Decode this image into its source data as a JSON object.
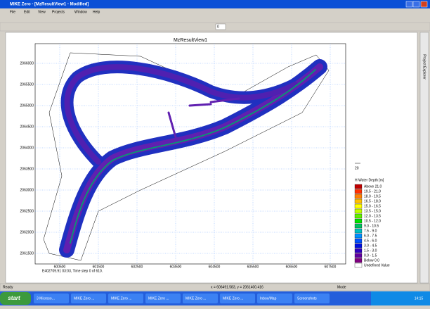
{
  "window": {
    "title": "MIKE Zero - [MzResultView1 - Modified]",
    "menu": [
      "File",
      "Edit",
      "View",
      "Projects",
      "Window",
      "Help"
    ],
    "toolbar_input": "0",
    "side_panel": "Project Explorer"
  },
  "plot": {
    "title": "MzResultView1",
    "yticks": [
      "2066000",
      "2065500",
      "2065000",
      "2064500",
      "2064000",
      "2063500",
      "2063000",
      "2062500",
      "2062000",
      "2061500"
    ],
    "xticks": [
      "600500",
      "601500",
      "602500",
      "603500",
      "604500",
      "605500",
      "606500",
      "607500"
    ],
    "time_label": "E402709.91 03:03, Time step 0 of 610.",
    "vector_scale": "20"
  },
  "legend": {
    "title": "H Water Depth [m]",
    "items": [
      {
        "label": "Above 21.0",
        "color": "#c00000"
      },
      {
        "label": "19.5 - 21.0",
        "color": "#ff3000"
      },
      {
        "label": "18.0 - 19.5",
        "color": "#ff8000"
      },
      {
        "label": "16.5 - 18.0",
        "color": "#ffc000"
      },
      {
        "label": "15.0 - 16.5",
        "color": "#ffff00"
      },
      {
        "label": "13.5 - 15.0",
        "color": "#c0ff00"
      },
      {
        "label": "12.0 - 13.5",
        "color": "#60f000"
      },
      {
        "label": "10.5 - 12.0",
        "color": "#00e000"
      },
      {
        "label": "9.0 - 10.5",
        "color": "#00c060"
      },
      {
        "label": "7.5 - 9.0",
        "color": "#00c0c0"
      },
      {
        "label": "6.0 - 7.5",
        "color": "#0090ff"
      },
      {
        "label": "4.5 - 6.0",
        "color": "#0050ff"
      },
      {
        "label": "3.0 - 4.5",
        "color": "#0010e0"
      },
      {
        "label": "1.5 - 3.0",
        "color": "#3000c0"
      },
      {
        "label": "0.0 - 1.5",
        "color": "#6000a0"
      },
      {
        "label": "Below 0.0",
        "color": "#800080"
      },
      {
        "label": "Undefined Value",
        "color": "#ffffff"
      }
    ]
  },
  "status": {
    "left": "Ready",
    "coords": "x = 606491.583, y = 2061400.416",
    "mode": "Mode"
  },
  "taskbar": {
    "start": "start",
    "items": [
      "3 Microso...",
      "MIKE Zero ...",
      "MIKE Zero ...",
      "MIKE Zero ...",
      "MIKE Zero ...",
      "MIKE Zero ...",
      "Inbox/Map",
      "Screenshots"
    ],
    "clock": "14:15"
  }
}
